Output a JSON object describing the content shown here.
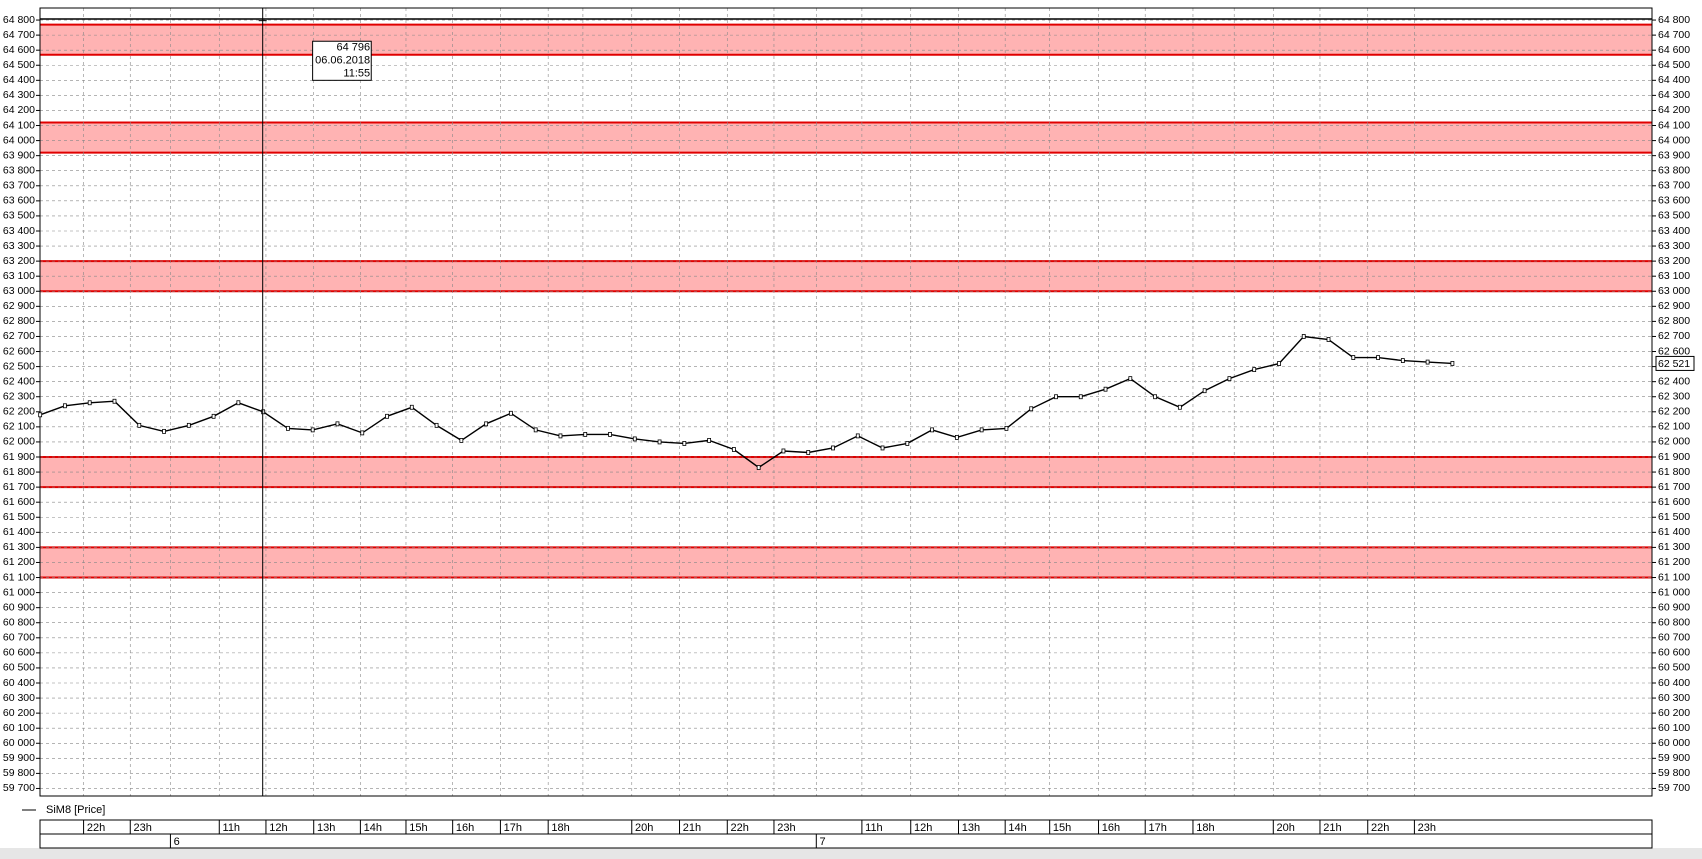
{
  "chart_data": {
    "type": "line",
    "series": [
      {
        "name": "SiM8 [Price]",
        "color": "#000000",
        "values": [
          62180,
          62240,
          62260,
          62270,
          62110,
          62070,
          62110,
          62170,
          62260,
          62200,
          62090,
          62080,
          62120,
          62060,
          62170,
          62230,
          62110,
          62010,
          62120,
          62190,
          62080,
          62040,
          62050,
          62050,
          62020,
          62000,
          61990,
          62010,
          61950,
          61830,
          61940,
          61930,
          61960,
          62040,
          61960,
          61990,
          62080,
          62030,
          62080,
          62090,
          62220,
          62300,
          62300,
          62350,
          62420,
          62300,
          62230,
          62340,
          62420,
          62480,
          62520,
          62700,
          62680,
          62560,
          62560,
          62540,
          62530,
          62521
        ]
      }
    ],
    "ylim": [
      59650,
      64880
    ],
    "yticks": [
      {
        "value": 64800,
        "label": "64 800"
      },
      {
        "value": 64700,
        "label": "64 700"
      },
      {
        "value": 64600,
        "label": "64 600"
      },
      {
        "value": 64500,
        "label": "64 500"
      },
      {
        "value": 64400,
        "label": "64 400"
      },
      {
        "value": 64300,
        "label": "64 300"
      },
      {
        "value": 64200,
        "label": "64 200"
      },
      {
        "value": 64100,
        "label": "64 100"
      },
      {
        "value": 64000,
        "label": "64 000"
      },
      {
        "value": 63900,
        "label": "63 900"
      },
      {
        "value": 63800,
        "label": "63 800"
      },
      {
        "value": 63700,
        "label": "63 700"
      },
      {
        "value": 63600,
        "label": "63 600"
      },
      {
        "value": 63500,
        "label": "63 500"
      },
      {
        "value": 63400,
        "label": "63 400"
      },
      {
        "value": 63300,
        "label": "63 300"
      },
      {
        "value": 63200,
        "label": "63 200"
      },
      {
        "value": 63100,
        "label": "63 100"
      },
      {
        "value": 63000,
        "label": "63 000"
      },
      {
        "value": 62900,
        "label": "62 900"
      },
      {
        "value": 62800,
        "label": "62 800"
      },
      {
        "value": 62700,
        "label": "62 700"
      },
      {
        "value": 62600,
        "label": "62 600"
      },
      {
        "value": 62500,
        "label": "62 500"
      },
      {
        "value": 62400,
        "label": "62 400"
      },
      {
        "value": 62300,
        "label": "62 300"
      },
      {
        "value": 62200,
        "label": "62 200"
      },
      {
        "value": 62100,
        "label": "62 100"
      },
      {
        "value": 62000,
        "label": "62 000"
      },
      {
        "value": 61900,
        "label": "61 900"
      },
      {
        "value": 61800,
        "label": "61 800"
      },
      {
        "value": 61700,
        "label": "61 700"
      },
      {
        "value": 61600,
        "label": "61 600"
      },
      {
        "value": 61500,
        "label": "61 500"
      },
      {
        "value": 61400,
        "label": "61 400"
      },
      {
        "value": 61300,
        "label": "61 300"
      },
      {
        "value": 61200,
        "label": "61 200"
      },
      {
        "value": 61100,
        "label": "61 100"
      },
      {
        "value": 61000,
        "label": "61 000"
      },
      {
        "value": 60900,
        "label": "60 900"
      },
      {
        "value": 60800,
        "label": "60 800"
      },
      {
        "value": 60700,
        "label": "60 700"
      },
      {
        "value": 60600,
        "label": "60 600"
      },
      {
        "value": 60500,
        "label": "60 500"
      },
      {
        "value": 60400,
        "label": "60 400"
      },
      {
        "value": 60300,
        "label": "60 300"
      },
      {
        "value": 60200,
        "label": "60 200"
      },
      {
        "value": 60100,
        "label": "60 100"
      },
      {
        "value": 60000,
        "label": "60 000"
      },
      {
        "value": 59900,
        "label": "59 900"
      },
      {
        "value": 59800,
        "label": "59 800"
      },
      {
        "value": 59700,
        "label": "59 700"
      }
    ],
    "grid": true,
    "zones": [
      {
        "from": 64570,
        "to": 64770,
        "color": "#ffb3b3"
      },
      {
        "from": 63920,
        "to": 64120,
        "color": "#ffb3b3"
      },
      {
        "from": 63000,
        "to": 63200,
        "color": "#ffb3b3"
      },
      {
        "from": 61700,
        "to": 61900,
        "color": "#ffb3b3"
      },
      {
        "from": 61100,
        "to": 61300,
        "color": "#ffb3b3"
      }
    ],
    "time_labels": [
      "22h",
      "23h",
      "11h",
      "12h",
      "13h",
      "14h",
      "15h",
      "16h",
      "17h",
      "18h",
      "20h",
      "21h",
      "22h",
      "23h",
      "11h",
      "12h",
      "13h",
      "14h",
      "15h",
      "16h",
      "17h",
      "18h",
      "20h",
      "21h",
      "22h",
      "23h"
    ],
    "date_labels": [
      "6",
      "7"
    ],
    "tooltip": {
      "price": {
        "value": 64796,
        "label": "64 796"
      },
      "date": "06.06.2018",
      "time": "11:55"
    },
    "last_price": {
      "value": 62521,
      "label": "62 521"
    }
  }
}
